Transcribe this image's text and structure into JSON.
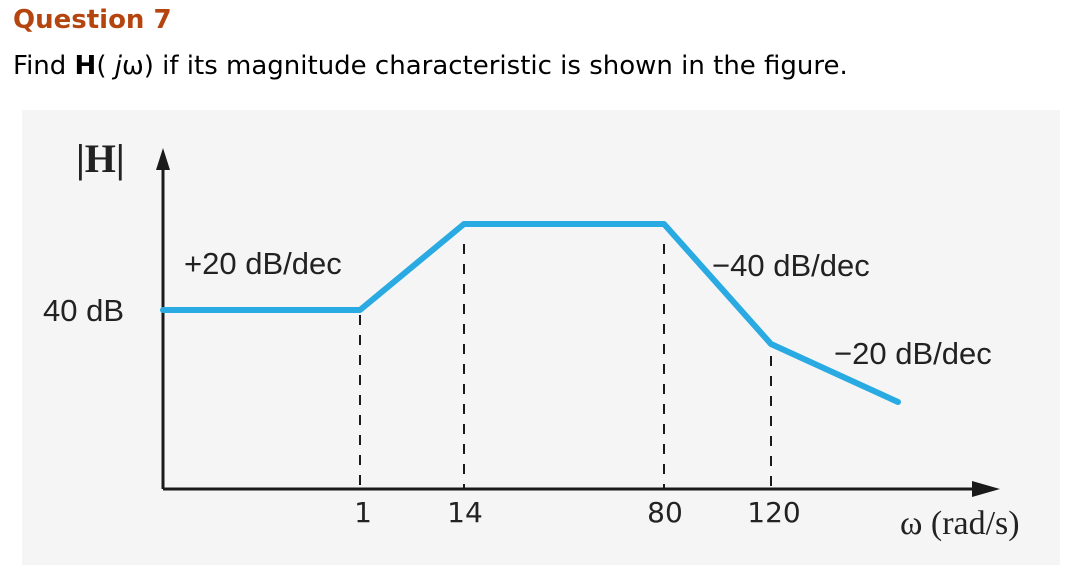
{
  "question": {
    "title": "Question 7",
    "text_prefix": "Find ",
    "text_bold": "H",
    "text_paren_open": "( ",
    "text_italic": "j",
    "text_omega": "ω",
    "text_suffix": ") if its magnitude characteristic is shown in the figure."
  },
  "figure": {
    "y_axis_label": "|H|",
    "x_axis_label": "ω (rad/s)",
    "y_level_label": "40 dB",
    "x_ticks": [
      "1",
      "14",
      "80",
      "120"
    ],
    "slope_labels": {
      "rise": "+20 dB/dec",
      "fall_steep": "−40 dB/dec",
      "fall_gentle": "−20 dB/dec"
    },
    "curve_color": "#29aae2",
    "axis_color": "#1a1a1a",
    "background_color": "#f5f5f5"
  }
}
